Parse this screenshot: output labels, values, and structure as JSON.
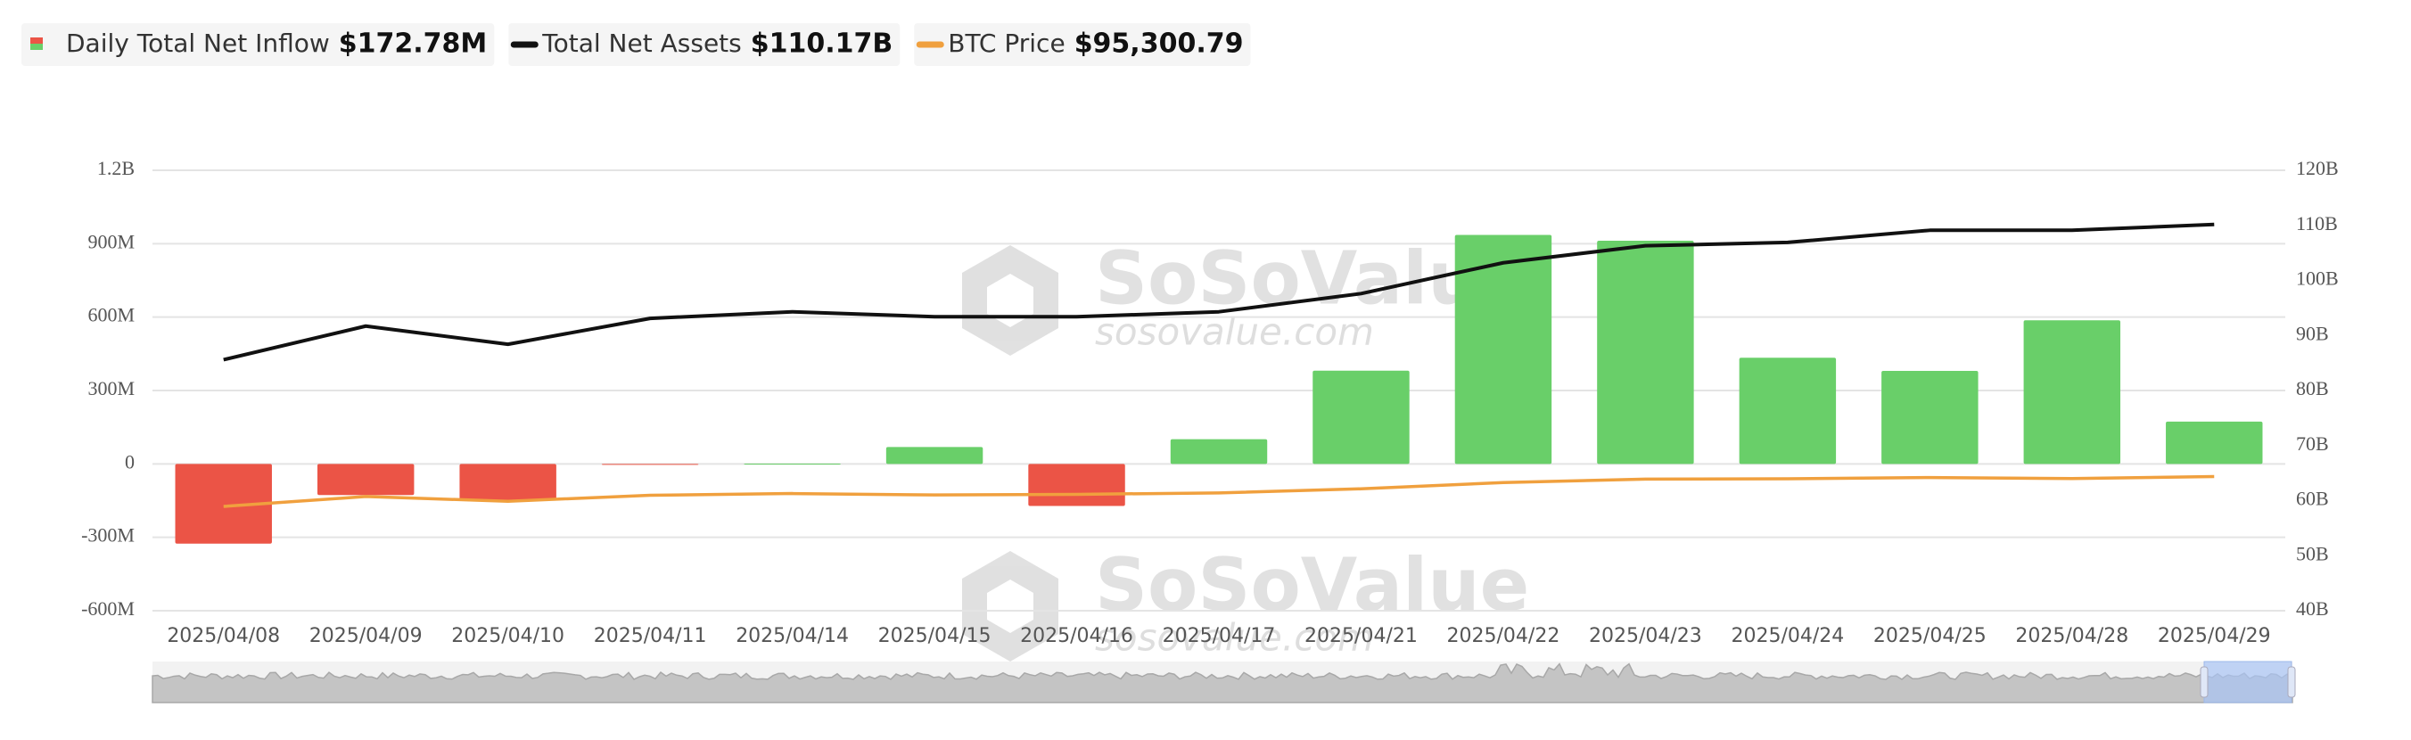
{
  "chart_data": {
    "type": "bar-line",
    "legend": [
      {
        "label": "Daily Total Net Inflow",
        "value": "$172.78M"
      },
      {
        "label": "Total Net Assets",
        "value": "$110.17B"
      },
      {
        "label": "BTC Price",
        "value": "$95,300.79"
      }
    ],
    "watermark": {
      "brand": "SoSoValue",
      "url": "sosovalue.com"
    },
    "categories": [
      "2025/04/08",
      "2025/04/09",
      "2025/04/10",
      "2025/04/11",
      "2025/04/14",
      "2025/04/15",
      "2025/04/16",
      "2025/04/17",
      "2025/04/21",
      "2025/04/22",
      "2025/04/23",
      "2025/04/24",
      "2025/04/25",
      "2025/04/28",
      "2025/04/29"
    ],
    "series": [
      {
        "name": "Daily Total Net Inflow",
        "kind": "bar",
        "color": "#69cf69",
        "negative_color": "#eb5446",
        "values": [
          -326,
          -127,
          -150,
          -3,
          1,
          69,
          -172,
          101,
          381,
          936,
          912,
          434,
          380,
          587,
          172.78
        ]
      },
      {
        "name": "Total Net Assets",
        "kind": "line",
        "axis": "y2",
        "color": "#111111",
        "values": [
          85.6,
          91.7,
          88.4,
          93.1,
          94.3,
          93.4,
          93.4,
          94.3,
          97.6,
          103.2,
          106.3,
          106.9,
          109.1,
          109.1,
          110.17
        ]
      },
      {
        "name": "BTC Price",
        "kind": "line",
        "axis": "y3",
        "color": "#f0a03e",
        "values": [
          76300,
          82600,
          79600,
          83400,
          84500,
          83600,
          84000,
          84900,
          87500,
          91500,
          93700,
          93900,
          94700,
          94000,
          95300.79
        ]
      }
    ],
    "ylim": [
      -600,
      1200
    ],
    "yticks": [
      {
        "value": -600,
        "label": "-600M"
      },
      {
        "value": -300,
        "label": "-300M"
      },
      0,
      {
        "value": 300,
        "label": "300M"
      },
      {
        "value": 600,
        "label": "600M"
      },
      {
        "value": 900,
        "label": "900M"
      },
      {
        "value": 1200,
        "label": "1.2B"
      }
    ],
    "y2lim": [
      40,
      120
    ],
    "y2ticks": [
      {
        "value": 40,
        "label": "40B"
      },
      {
        "value": 50,
        "label": "50B"
      },
      {
        "value": 60,
        "label": "60B"
      },
      {
        "value": 70,
        "label": "70B"
      },
      {
        "value": 80,
        "label": "80B"
      },
      {
        "value": 90,
        "label": "90B"
      },
      {
        "value": 100,
        "label": "100B"
      },
      {
        "value": 110,
        "label": "110B"
      },
      {
        "value": 120,
        "label": "120B"
      }
    ],
    "y3lim": [
      10000,
      290000
    ],
    "grid": true
  }
}
